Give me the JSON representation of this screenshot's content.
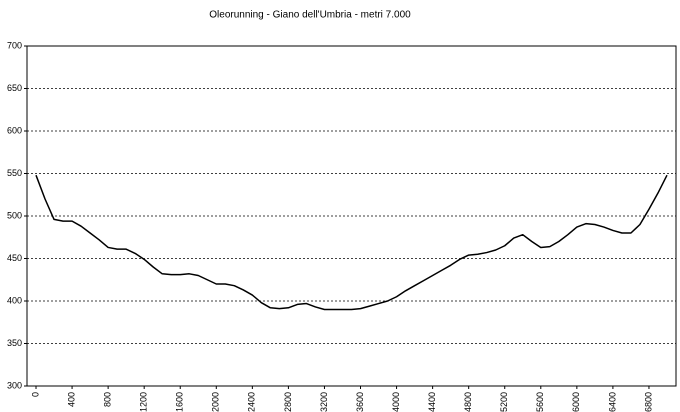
{
  "chart_data": {
    "type": "line",
    "title": "Oleorunning - Giano dell'Umbria - metri 7.000",
    "x": [
      0,
      100,
      200,
      300,
      400,
      500,
      600,
      700,
      800,
      900,
      1000,
      1100,
      1200,
      1300,
      1400,
      1500,
      1600,
      1700,
      1800,
      1900,
      2000,
      2100,
      2200,
      2300,
      2400,
      2500,
      2600,
      2700,
      2800,
      2900,
      3000,
      3100,
      3200,
      3300,
      3400,
      3500,
      3600,
      3700,
      3800,
      3900,
      4000,
      4100,
      4200,
      4300,
      4400,
      4500,
      4600,
      4700,
      4800,
      4900,
      5000,
      5100,
      5200,
      5300,
      5400,
      5500,
      5600,
      5700,
      5800,
      5900,
      6000,
      6100,
      6200,
      6300,
      6400,
      6500,
      6600,
      6700,
      6800,
      6900,
      7000
    ],
    "series": [
      {
        "color": "#000000",
        "values": [
          548,
          520,
          496,
          494,
          494,
          488,
          480,
          472,
          463,
          461,
          461,
          456,
          449,
          440,
          432,
          431,
          431,
          432,
          430,
          425,
          420,
          420,
          418,
          413,
          407,
          398,
          392,
          391,
          392,
          396,
          397,
          393,
          390,
          390,
          390,
          390,
          391,
          394,
          397,
          400,
          405,
          412,
          418,
          424,
          430,
          436,
          442,
          449,
          454,
          455,
          457,
          460,
          465,
          474,
          478,
          470,
          463,
          464,
          470,
          478,
          487,
          491,
          490,
          487,
          483,
          480,
          480,
          490,
          508,
          527,
          548
        ]
      }
    ],
    "xlim": [
      -100,
      7100
    ],
    "xticks": [
      0,
      400,
      800,
      1200,
      1600,
      2000,
      2400,
      2800,
      3200,
      3600,
      4000,
      4400,
      4800,
      5200,
      5600,
      6000,
      6400,
      6800
    ],
    "ylim": [
      300,
      700
    ],
    "yticks": [
      300,
      350,
      400,
      450,
      500,
      550,
      600,
      650,
      700
    ],
    "grid": true
  }
}
